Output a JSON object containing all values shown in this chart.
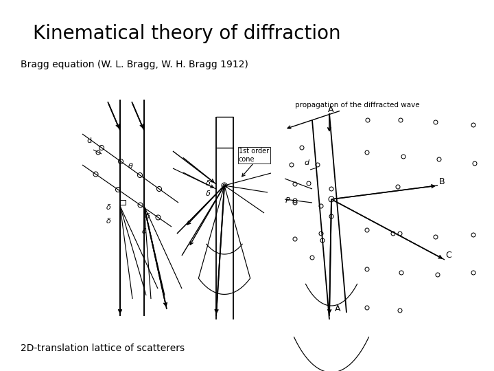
{
  "title": "Kinematical theory of diffraction",
  "subtitle": "Bragg equation (W. L. Bragg, W. H. Bragg 1912)",
  "footer": "2D-translation lattice of scatterers",
  "annotation_text": "propagation of the diffracted wave",
  "cone_label": "1st order\ncone",
  "bg_color": "#ffffff",
  "text_color": "#000000",
  "title_fontsize": 20,
  "subtitle_fontsize": 10,
  "footer_fontsize": 10,
  "annotation_fontsize": 7.5
}
